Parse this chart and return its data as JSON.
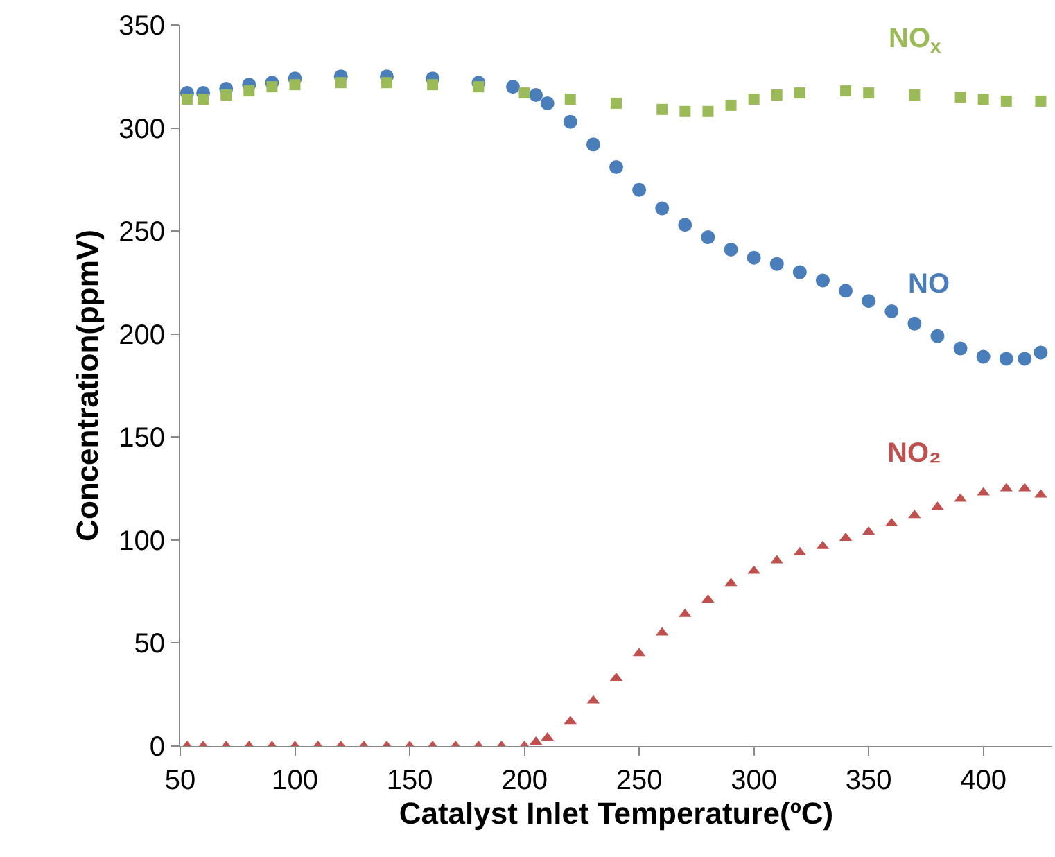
{
  "chart_data": {
    "type": "scatter",
    "xlabel": "Catalyst Inlet Temperature(ºC)",
    "ylabel": "Concentration(ppmV)",
    "xlim": [
      50,
      430
    ],
    "xticks": [
      50,
      100,
      150,
      200,
      250,
      300,
      350,
      400
    ],
    "ylim": [
      0,
      350
    ],
    "yticks": [
      0,
      50,
      100,
      150,
      200,
      250,
      300,
      350
    ],
    "grid": false,
    "legend": false,
    "series": [
      {
        "name": "NO",
        "color": "#4a7ebb",
        "marker": "circle",
        "x": [
          53,
          60,
          70,
          80,
          90,
          100,
          120,
          140,
          160,
          180,
          195,
          205,
          210,
          220,
          230,
          240,
          250,
          260,
          270,
          280,
          290,
          300,
          310,
          320,
          330,
          340,
          350,
          360,
          370,
          380,
          390,
          400,
          410,
          418,
          425
        ],
        "values": [
          317,
          317,
          319,
          321,
          322,
          324,
          325,
          325,
          324,
          322,
          320,
          316,
          312,
          303,
          292,
          281,
          270,
          261,
          253,
          247,
          241,
          237,
          234,
          230,
          226,
          221,
          216,
          211,
          205,
          199,
          193,
          189,
          188,
          188,
          191
        ]
      },
      {
        "name": "NO$_{x}$",
        "color": "#9bbb59",
        "marker": "square",
        "x": [
          53,
          60,
          70,
          80,
          90,
          100,
          120,
          140,
          160,
          180,
          200,
          220,
          240,
          260,
          270,
          280,
          290,
          300,
          310,
          320,
          340,
          350,
          370,
          390,
          400,
          410,
          425
        ],
        "values": [
          314,
          314,
          316,
          318,
          320,
          321,
          322,
          322,
          321,
          320,
          317,
          314,
          312,
          309,
          308,
          308,
          311,
          314,
          316,
          317,
          318,
          317,
          316,
          315,
          314,
          313,
          313
        ]
      },
      {
        "name": "NO₂",
        "color": "#c0504d",
        "marker": "triangle",
        "x": [
          53,
          60,
          70,
          80,
          90,
          100,
          110,
          120,
          130,
          140,
          150,
          160,
          170,
          180,
          190,
          200,
          205,
          210,
          220,
          230,
          240,
          250,
          260,
          270,
          280,
          290,
          300,
          310,
          320,
          330,
          340,
          350,
          360,
          370,
          380,
          390,
          400,
          410,
          418,
          425
        ],
        "values": [
          0,
          0,
          0,
          0,
          0,
          0,
          0,
          0,
          0,
          0,
          0,
          0,
          0,
          0,
          0,
          0,
          2,
          4,
          12,
          22,
          33,
          45,
          55,
          64,
          71,
          79,
          85,
          90,
          94,
          97,
          101,
          104,
          108,
          112,
          116,
          120,
          123,
          125,
          125,
          122
        ]
      }
    ]
  }
}
